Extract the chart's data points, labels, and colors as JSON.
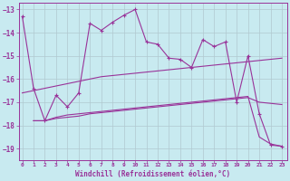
{
  "xlabel": "Windchill (Refroidissement éolien,°C)",
  "bg_color": "#c8eaf0",
  "grid_color": "#b0c8d0",
  "line_color": "#993399",
  "x_ticks": [
    0,
    1,
    2,
    3,
    4,
    5,
    6,
    7,
    8,
    9,
    10,
    11,
    12,
    13,
    14,
    15,
    16,
    17,
    18,
    19,
    20,
    21,
    22,
    23
  ],
  "y_ticks": [
    -13,
    -14,
    -15,
    -16,
    -17,
    -18,
    -19
  ],
  "ylim": [
    -19.5,
    -12.7
  ],
  "xlim": [
    -0.3,
    23.5
  ],
  "series1_x": [
    0,
    1,
    2,
    3,
    4,
    5,
    6,
    7,
    8,
    9,
    10,
    11,
    12,
    13,
    14,
    15,
    16,
    17,
    18,
    19,
    20,
    21,
    22,
    23
  ],
  "series1_y": [
    -13.3,
    -16.4,
    -17.8,
    -16.7,
    -17.2,
    -16.6,
    -13.6,
    -13.9,
    -13.55,
    -13.25,
    -13.0,
    -14.4,
    -14.5,
    -15.1,
    -15.15,
    -15.5,
    -14.3,
    -14.6,
    -14.4,
    -17.0,
    -15.0,
    -17.5,
    -18.85,
    -18.9
  ],
  "series2_x": [
    0,
    1,
    2,
    3,
    4,
    5,
    6,
    7,
    8,
    9,
    10,
    11,
    12,
    13,
    14,
    15,
    16,
    17,
    18,
    19,
    20,
    21,
    22,
    23
  ],
  "series2_y": [
    -16.6,
    -16.5,
    -16.4,
    -16.3,
    -16.2,
    -16.1,
    -16.0,
    -15.9,
    -15.85,
    -15.8,
    -15.75,
    -15.7,
    -15.65,
    -15.6,
    -15.55,
    -15.5,
    -15.45,
    -15.4,
    -15.35,
    -15.3,
    -15.25,
    -15.2,
    -15.15,
    -15.1
  ],
  "series3_x": [
    1,
    2,
    3,
    4,
    5,
    6,
    7,
    8,
    9,
    10,
    11,
    12,
    13,
    14,
    15,
    16,
    17,
    18,
    19,
    20,
    21,
    22,
    23
  ],
  "series3_y": [
    -17.8,
    -17.8,
    -17.7,
    -17.65,
    -17.6,
    -17.5,
    -17.45,
    -17.4,
    -17.35,
    -17.3,
    -17.25,
    -17.2,
    -17.15,
    -17.1,
    -17.05,
    -17.0,
    -16.95,
    -16.9,
    -16.85,
    -16.8,
    -17.0,
    -17.05,
    -17.1
  ],
  "series4_x": [
    1,
    2,
    3,
    4,
    5,
    6,
    7,
    8,
    9,
    10,
    11,
    12,
    13,
    14,
    15,
    16,
    17,
    18,
    19,
    20,
    21,
    22,
    23
  ],
  "series4_y": [
    -17.8,
    -17.8,
    -17.65,
    -17.55,
    -17.5,
    -17.45,
    -17.4,
    -17.35,
    -17.3,
    -17.25,
    -17.2,
    -17.15,
    -17.1,
    -17.05,
    -17.0,
    -16.95,
    -16.9,
    -16.85,
    -16.8,
    -16.75,
    -18.5,
    -18.8,
    -18.9
  ]
}
